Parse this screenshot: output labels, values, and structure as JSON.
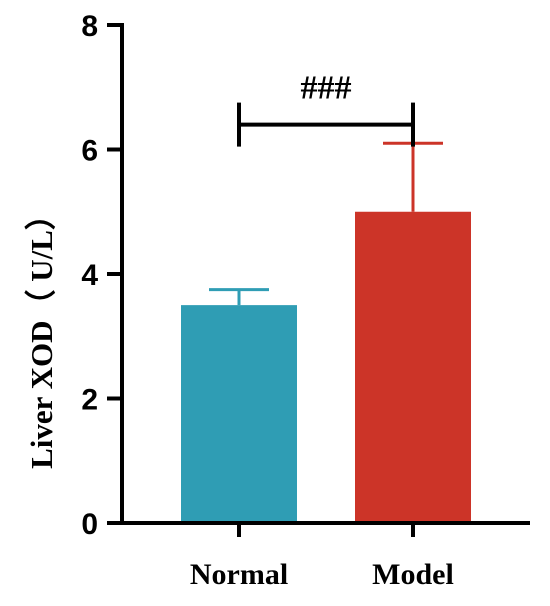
{
  "chart_data": {
    "type": "bar",
    "categories": [
      "Normal",
      "Model"
    ],
    "values": [
      3.5,
      5.0
    ],
    "errors": [
      0.25,
      1.1
    ],
    "colors": [
      "#2f9db4",
      "#cc3428"
    ],
    "ylabel": "Liver XOD（ U/L）",
    "ylim": [
      0,
      8
    ],
    "yticks": [
      "0",
      "2",
      "4",
      "6",
      "8"
    ],
    "significance": {
      "label": "###",
      "between": [
        "Normal",
        "Model"
      ],
      "y": 6.4
    },
    "grid": false,
    "legend": "none"
  }
}
